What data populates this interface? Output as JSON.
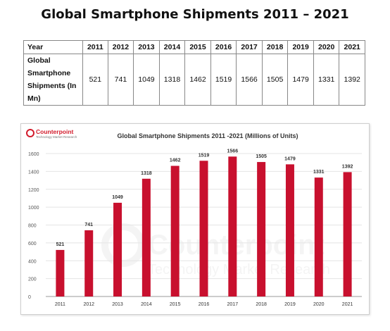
{
  "page": {
    "title": "Global Smartphone Shipments 2011 – 2021"
  },
  "table": {
    "header_label": "Year",
    "row_label": "Global Smartphone Shipments (In Mn)",
    "years": [
      "2011",
      "2012",
      "2013",
      "2014",
      "2015",
      "2016",
      "2017",
      "2018",
      "2019",
      "2020",
      "2021"
    ],
    "values": [
      "521",
      "741",
      "1049",
      "1318",
      "1462",
      "1519",
      "1566",
      "1505",
      "1479",
      "1331",
      "1392"
    ]
  },
  "logo": {
    "name": "Counterpoint",
    "tagline": "Technology Market Research"
  },
  "watermark": {
    "name": "Counterpoint",
    "tagline": "Technology Market Research"
  },
  "colors": {
    "bar": "#c8102e",
    "brand": "#d21c2c",
    "grid": "#e4e4e4"
  },
  "chart_data": {
    "type": "bar",
    "title": "Global Smartphone Shipments 2011 -2021 (Millions of Units)",
    "xlabel": "",
    "ylabel": "",
    "categories": [
      "2011",
      "2012",
      "2013",
      "2014",
      "2015",
      "2016",
      "2017",
      "2018",
      "2019",
      "2020",
      "2021"
    ],
    "values": [
      521,
      741,
      1049,
      1318,
      1462,
      1519,
      1566,
      1505,
      1479,
      1331,
      1392
    ],
    "ylim": [
      0,
      1600
    ],
    "yticks": [
      0,
      200,
      400,
      600,
      800,
      1000,
      1200,
      1400,
      1600
    ],
    "grid": true,
    "data_labels": true,
    "legend": "none"
  }
}
